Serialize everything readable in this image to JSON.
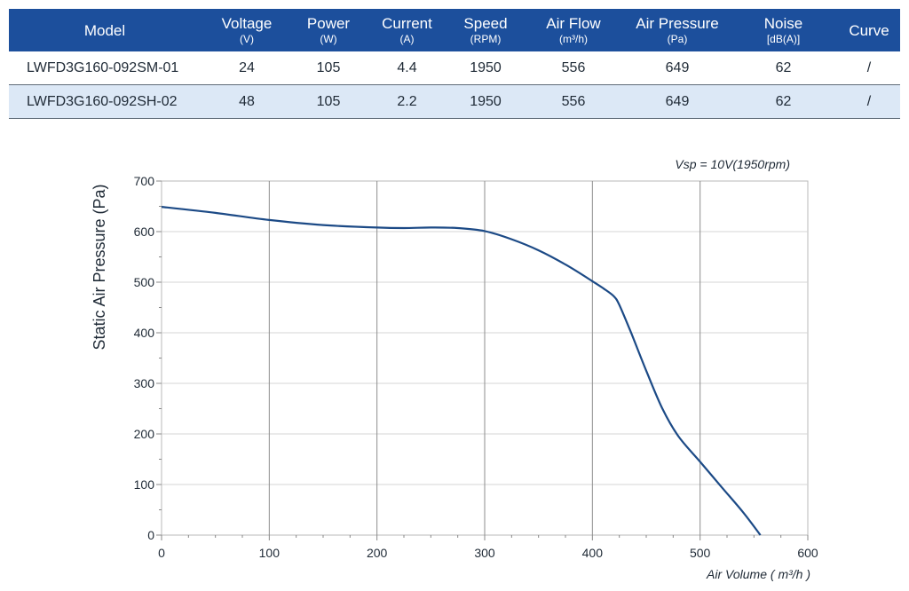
{
  "table": {
    "headers": [
      {
        "label": "Model",
        "unit": ""
      },
      {
        "label": "Voltage",
        "unit": "(V)"
      },
      {
        "label": "Power",
        "unit": "(W)"
      },
      {
        "label": "Current",
        "unit": "(A)"
      },
      {
        "label": "Speed",
        "unit": "(RPM)"
      },
      {
        "label": "Air Flow",
        "unit": "(m³/h)"
      },
      {
        "label": "Air Pressure",
        "unit": "(Pa)"
      },
      {
        "label": "Noise",
        "unit": "[dB(A)]"
      },
      {
        "label": "Curve",
        "unit": ""
      }
    ],
    "rows": [
      [
        "LWFD3G160-092SM-01",
        "24",
        "105",
        "4.4",
        "1950",
        "556",
        "649",
        "62",
        "/"
      ],
      [
        "LWFD3G160-092SH-02",
        "48",
        "105",
        "2.2",
        "1950",
        "556",
        "649",
        "62",
        "/"
      ]
    ],
    "header_color": "#1c4f9c",
    "alt_row_color": "#dce8f6"
  },
  "chart_data": {
    "type": "line",
    "annotation": "Vsp = 10V(1950rpm)",
    "xlabel": "Air Volume ( m³/h )",
    "ylabel": "Static Air Pressure  (Pa)",
    "xlim": [
      0,
      600
    ],
    "ylim": [
      0,
      700
    ],
    "xticks": [
      0,
      100,
      200,
      300,
      400,
      500,
      600
    ],
    "yticks": [
      0,
      100,
      200,
      300,
      400,
      500,
      600,
      700
    ],
    "grid": true,
    "line_color": "#1c4a86",
    "series": [
      {
        "x": [
          0,
          50,
          100,
          150,
          200,
          225,
          250,
          275,
          300,
          325,
          350,
          375,
          400,
          410,
          420,
          425,
          435,
          450,
          465,
          480,
          500,
          520,
          540,
          556
        ],
        "y": [
          649,
          637,
          623,
          613,
          608,
          607,
          608,
          607,
          601,
          585,
          563,
          535,
          502,
          488,
          472,
          455,
          405,
          325,
          250,
          195,
          145,
          95,
          45,
          0
        ]
      }
    ]
  }
}
